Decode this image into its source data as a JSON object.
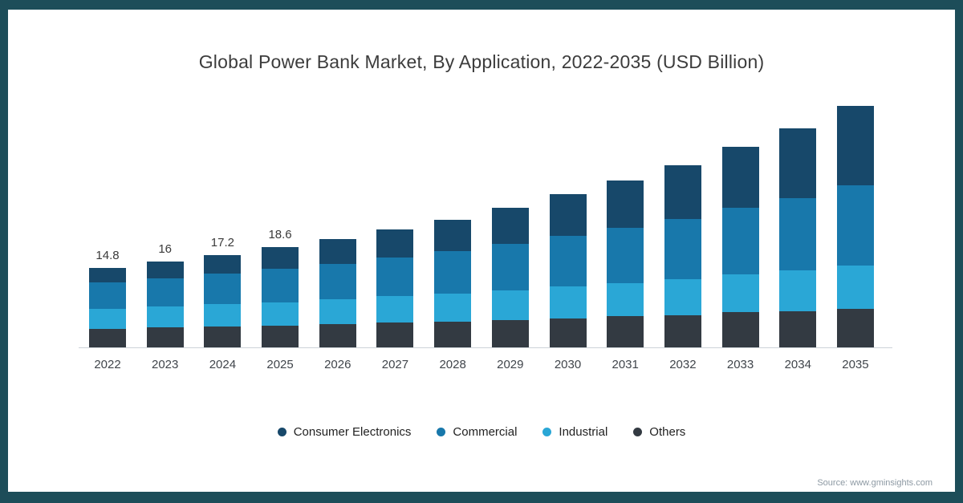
{
  "frame": {
    "border_color": "#1d4d59",
    "background": "#ffffff"
  },
  "chart_data": {
    "type": "bar",
    "stacked": true,
    "title": "Global Power Bank Market, By Application, 2022-2035 (USD Billion)",
    "xlabel": "",
    "ylabel": "",
    "grid": false,
    "legend_position": "bottom",
    "categories": [
      "2022",
      "2023",
      "2024",
      "2025",
      "2026",
      "2027",
      "2028",
      "2029",
      "2030",
      "2031",
      "2032",
      "2033",
      "2034",
      "2035"
    ],
    "series": [
      {
        "name": "Consumer Electronics",
        "color": "#17486a",
        "values": [
          2.7,
          3.1,
          3.5,
          4.0,
          4.5,
          5.2,
          5.9,
          6.8,
          7.8,
          8.8,
          10.0,
          11.4,
          13.0,
          14.9
        ]
      },
      {
        "name": "Commercial",
        "color": "#1878ab",
        "values": [
          4.9,
          5.3,
          5.7,
          6.2,
          6.7,
          7.2,
          7.9,
          8.6,
          9.4,
          10.2,
          11.2,
          12.3,
          13.5,
          14.8
        ]
      },
      {
        "name": "Industrial",
        "color": "#2aa7d6",
        "values": [
          3.7,
          3.9,
          4.1,
          4.3,
          4.6,
          4.9,
          5.2,
          5.5,
          5.9,
          6.2,
          6.7,
          7.1,
          7.6,
          8.1
        ]
      },
      {
        "name": "Others",
        "color": "#333a42",
        "values": [
          3.5,
          3.7,
          3.9,
          4.1,
          4.3,
          4.6,
          4.8,
          5.1,
          5.4,
          5.8,
          6.0,
          6.5,
          6.7,
          7.2
        ]
      }
    ],
    "totals": [
      14.8,
      16,
      17.2,
      18.6,
      20.1,
      21.9,
      23.8,
      26,
      28.5,
      31,
      33.9,
      37.3,
      40.8,
      45
    ],
    "bar_labels": [
      "14.8",
      "16",
      "17.2",
      "18.6",
      "",
      "",
      "",
      "",
      "",
      "",
      "",
      "",
      "",
      ""
    ]
  },
  "source": {
    "label": "Source: www.gminsights.com"
  }
}
